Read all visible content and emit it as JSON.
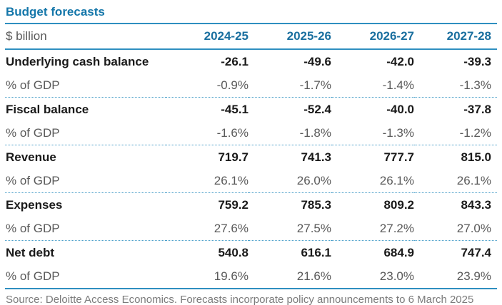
{
  "title": "Budget forecasts",
  "table": {
    "unit_label": "$ billion",
    "columns": [
      "2024-25",
      "2025-26",
      "2026-27",
      "2027-28"
    ],
    "gdp_row_label": "% of GDP",
    "rows": [
      {
        "label": "Underlying cash balance",
        "values": [
          "-26.1",
          "-49.6",
          "-42.0",
          "-39.3"
        ],
        "gdp_values": [
          "-0.9%",
          "-1.7%",
          "-1.4%",
          "-1.3%"
        ]
      },
      {
        "label": "Fiscal balance",
        "values": [
          "-45.1",
          "-52.4",
          "-40.0",
          "-37.8"
        ],
        "gdp_values": [
          "-1.6%",
          "-1.8%",
          "-1.3%",
          "-1.2%"
        ]
      },
      {
        "label": "Revenue",
        "values": [
          "719.7",
          "741.3",
          "777.7",
          "815.0"
        ],
        "gdp_values": [
          "26.1%",
          "26.0%",
          "26.1%",
          "26.1%"
        ]
      },
      {
        "label": "Expenses",
        "values": [
          "759.2",
          "785.3",
          "809.2",
          "843.3"
        ],
        "gdp_values": [
          "27.6%",
          "27.5%",
          "27.2%",
          "27.0%"
        ]
      },
      {
        "label": "Net debt",
        "values": [
          "540.8",
          "616.1",
          "684.9",
          "747.4"
        ],
        "gdp_values": [
          "19.6%",
          "21.6%",
          "23.0%",
          "23.9%"
        ]
      }
    ]
  },
  "source": "Source: Deloitte Access Economics. Forecasts incorporate policy announcements to 6 March 2025",
  "colors": {
    "accent_blue": "#1577aa",
    "rule_blue": "#2f8fc0",
    "dotted_rule_blue": "#4a9fc9",
    "body_black": "#1a1a1a",
    "muted_gray": "#5a5a5a",
    "source_gray": "#7b7b7b"
  },
  "chart_data": {
    "type": "table",
    "title": "Budget forecasts",
    "unit": "$ billion",
    "columns": [
      "2024-25",
      "2025-26",
      "2026-27",
      "2027-28"
    ],
    "rows": [
      {
        "label": "Underlying cash balance",
        "values": [
          -26.1,
          -49.6,
          -42.0,
          -39.3
        ],
        "pct_of_gdp": [
          -0.9,
          -1.7,
          -1.4,
          -1.3
        ]
      },
      {
        "label": "Fiscal balance",
        "values": [
          -45.1,
          -52.4,
          -40.0,
          -37.8
        ],
        "pct_of_gdp": [
          -1.6,
          -1.8,
          -1.3,
          -1.2
        ]
      },
      {
        "label": "Revenue",
        "values": [
          719.7,
          741.3,
          777.7,
          815.0
        ],
        "pct_of_gdp": [
          26.1,
          26.0,
          26.1,
          26.1
        ]
      },
      {
        "label": "Expenses",
        "values": [
          759.2,
          785.3,
          809.2,
          843.3
        ],
        "pct_of_gdp": [
          27.6,
          27.5,
          27.2,
          27.0
        ]
      },
      {
        "label": "Net debt",
        "values": [
          540.8,
          616.1,
          684.9,
          747.4
        ],
        "pct_of_gdp": [
          19.6,
          21.6,
          23.0,
          23.9
        ]
      }
    ],
    "source": "Source: Deloitte Access Economics. Forecasts incorporate policy announcements to 6 March 2025"
  }
}
